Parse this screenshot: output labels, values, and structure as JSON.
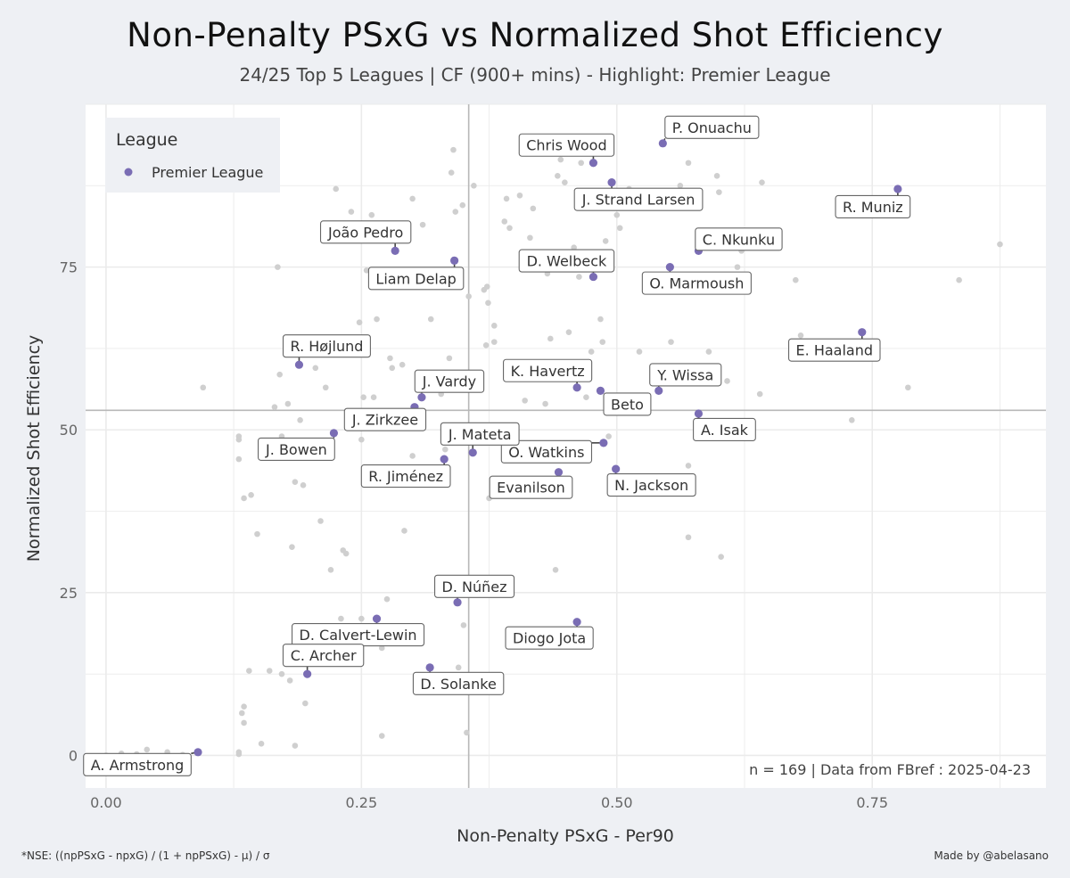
{
  "title": "Non-Penalty PSxG  vs  Normalized Shot Efficiency",
  "subtitle": "24/25 Top 5 Leagues | CF (900+ mins) - Highlight: Premier League",
  "caption": "n =  169  | Data from  FBref : 2025-04-23",
  "footnote_left": "*NSE: ((npPSxG - npxG) / (1 + npPSxG) - μ) / σ",
  "footnote_right": "Made by @abelasano",
  "legend": {
    "title": "League",
    "item": "Premier League"
  },
  "colors": {
    "highlight": "#7a6db4",
    "background_points": "#cfcfcf",
    "reference_lines": "#b8b8b8",
    "panel": "#ffffff",
    "page": "#eef0f4"
  },
  "chart_data": {
    "type": "scatter",
    "xlabel": "Non-Penalty PSxG  -  Per90",
    "ylabel": "Normalized Shot Efficiency",
    "xlim": [
      -0.02,
      0.92
    ],
    "ylim": [
      -5,
      100
    ],
    "x_ticks": [
      0.0,
      0.25,
      0.5,
      0.75
    ],
    "x_tick_labels": [
      "0.00",
      "0.25",
      "0.50",
      "0.75"
    ],
    "y_ticks": [
      0,
      25,
      50,
      75
    ],
    "y_tick_labels": [
      "0",
      "25",
      "50",
      "75"
    ],
    "x_reference": 0.355,
    "y_reference": 53,
    "grid": true,
    "legend_position": "top-left",
    "highlight_series": {
      "name": "Premier League",
      "points": [
        {
          "label": "P. Onuachu",
          "x": 0.545,
          "y": 94
        },
        {
          "label": "Chris Wood",
          "x": 0.477,
          "y": 91
        },
        {
          "label": "J. Strand Larsen",
          "x": 0.495,
          "y": 88
        },
        {
          "label": "R. Muniz",
          "x": 0.775,
          "y": 87
        },
        {
          "label": "João Pedro",
          "x": 0.283,
          "y": 77.5
        },
        {
          "label": "C. Nkunku",
          "x": 0.58,
          "y": 77.5
        },
        {
          "label": "Liam Delap",
          "x": 0.341,
          "y": 76
        },
        {
          "label": "O. Marmoush",
          "x": 0.552,
          "y": 75
        },
        {
          "label": "D. Welbeck",
          "x": 0.477,
          "y": 73.5
        },
        {
          "label": "E. Haaland",
          "x": 0.74,
          "y": 65
        },
        {
          "label": "R. Højlund",
          "x": 0.189,
          "y": 60
        },
        {
          "label": "K. Havertz",
          "x": 0.461,
          "y": 56.5
        },
        {
          "label": "Y. Wissa",
          "x": 0.541,
          "y": 56
        },
        {
          "label": "Beto",
          "x": 0.484,
          "y": 56
        },
        {
          "label": "J. Vardy",
          "x": 0.309,
          "y": 55
        },
        {
          "label": "J. Zirkzee",
          "x": 0.302,
          "y": 53.5
        },
        {
          "label": "A. Isak",
          "x": 0.58,
          "y": 52.5
        },
        {
          "label": "J. Bowen",
          "x": 0.223,
          "y": 49.5
        },
        {
          "label": "O. Watkins",
          "x": 0.487,
          "y": 48
        },
        {
          "label": "J. Mateta",
          "x": 0.359,
          "y": 46.5
        },
        {
          "label": "R. Jiménez",
          "x": 0.331,
          "y": 45.5
        },
        {
          "label": "N. Jackson",
          "x": 0.499,
          "y": 44
        },
        {
          "label": "Evanilson",
          "x": 0.443,
          "y": 43.5
        },
        {
          "label": "D. Núñez",
          "x": 0.344,
          "y": 23.5
        },
        {
          "label": "D. Calvert-Lewin",
          "x": 0.265,
          "y": 21
        },
        {
          "label": "Diogo Jota",
          "x": 0.461,
          "y": 20.5
        },
        {
          "label": "D. Solanke",
          "x": 0.317,
          "y": 13.5
        },
        {
          "label": "C. Archer",
          "x": 0.197,
          "y": 12.5
        },
        {
          "label": "A. Armstrong",
          "x": 0.09,
          "y": 0.5
        }
      ]
    },
    "other_points": [
      [
        0.0,
        0.0
      ],
      [
        0.015,
        0.3
      ],
      [
        0.03,
        0.2
      ],
      [
        0.04,
        0.9
      ],
      [
        0.06,
        0.5
      ],
      [
        0.075,
        0.1
      ],
      [
        0.095,
        56.5
      ],
      [
        0.13,
        49
      ],
      [
        0.13,
        48.5
      ],
      [
        0.13,
        45.5
      ],
      [
        0.13,
        0.5
      ],
      [
        0.13,
        0.2
      ],
      [
        0.133,
        6.5
      ],
      [
        0.135,
        7.5
      ],
      [
        0.135,
        5
      ],
      [
        0.135,
        39.5
      ],
      [
        0.14,
        13
      ],
      [
        0.142,
        40
      ],
      [
        0.148,
        34
      ],
      [
        0.152,
        1.8
      ],
      [
        0.16,
        13
      ],
      [
        0.165,
        53.5
      ],
      [
        0.168,
        75
      ],
      [
        0.17,
        58.5
      ],
      [
        0.172,
        49
      ],
      [
        0.172,
        12.5
      ],
      [
        0.178,
        54
      ],
      [
        0.18,
        11.5
      ],
      [
        0.182,
        32
      ],
      [
        0.185,
        42
      ],
      [
        0.185,
        1.5
      ],
      [
        0.19,
        51.5
      ],
      [
        0.193,
        41.5
      ],
      [
        0.195,
        8
      ],
      [
        0.205,
        59.5
      ],
      [
        0.21,
        36
      ],
      [
        0.215,
        56.5
      ],
      [
        0.22,
        28.5
      ],
      [
        0.225,
        87
      ],
      [
        0.23,
        21
      ],
      [
        0.232,
        31.5
      ],
      [
        0.235,
        31
      ],
      [
        0.24,
        83.5
      ],
      [
        0.248,
        66.5
      ],
      [
        0.25,
        48.5
      ],
      [
        0.25,
        21
      ],
      [
        0.252,
        55
      ],
      [
        0.255,
        74.5
      ],
      [
        0.26,
        83
      ],
      [
        0.262,
        55
      ],
      [
        0.265,
        67
      ],
      [
        0.27,
        3
      ],
      [
        0.27,
        16.5
      ],
      [
        0.275,
        24
      ],
      [
        0.278,
        61
      ],
      [
        0.28,
        59.5
      ],
      [
        0.29,
        60
      ],
      [
        0.292,
        34.5
      ],
      [
        0.3,
        85.5
      ],
      [
        0.3,
        46
      ],
      [
        0.31,
        81.5
      ],
      [
        0.318,
        67
      ],
      [
        0.328,
        55.5
      ],
      [
        0.332,
        47
      ],
      [
        0.336,
        61
      ],
      [
        0.338,
        89.5
      ],
      [
        0.34,
        93
      ],
      [
        0.342,
        83.5
      ],
      [
        0.345,
        13.5
      ],
      [
        0.349,
        84.5
      ],
      [
        0.35,
        20
      ],
      [
        0.353,
        3.5
      ],
      [
        0.355,
        70.5
      ],
      [
        0.36,
        87.5
      ],
      [
        0.37,
        71.5
      ],
      [
        0.372,
        63
      ],
      [
        0.373,
        72
      ],
      [
        0.374,
        69.5
      ],
      [
        0.375,
        39.5
      ],
      [
        0.38,
        66
      ],
      [
        0.38,
        63.5
      ],
      [
        0.39,
        82
      ],
      [
        0.392,
        85.5
      ],
      [
        0.395,
        81
      ],
      [
        0.405,
        86
      ],
      [
        0.41,
        54.5
      ],
      [
        0.415,
        79.5
      ],
      [
        0.418,
        84
      ],
      [
        0.43,
        54
      ],
      [
        0.432,
        74
      ],
      [
        0.435,
        64
      ],
      [
        0.44,
        28.5
      ],
      [
        0.442,
        89
      ],
      [
        0.445,
        91.5
      ],
      [
        0.449,
        88
      ],
      [
        0.453,
        65
      ],
      [
        0.458,
        78
      ],
      [
        0.463,
        73.5
      ],
      [
        0.465,
        91
      ],
      [
        0.47,
        55
      ],
      [
        0.475,
        62
      ],
      [
        0.484,
        67
      ],
      [
        0.486,
        63.5
      ],
      [
        0.489,
        79
      ],
      [
        0.492,
        49
      ],
      [
        0.5,
        83
      ],
      [
        0.503,
        81
      ],
      [
        0.512,
        87
      ],
      [
        0.522,
        62
      ],
      [
        0.553,
        63.5
      ],
      [
        0.562,
        87.5
      ],
      [
        0.57,
        91
      ],
      [
        0.57,
        44.5
      ],
      [
        0.57,
        33.5
      ],
      [
        0.58,
        51.5
      ],
      [
        0.59,
        62
      ],
      [
        0.598,
        89
      ],
      [
        0.6,
        86.5
      ],
      [
        0.602,
        30.5
      ],
      [
        0.608,
        57.5
      ],
      [
        0.618,
        75
      ],
      [
        0.622,
        77.5
      ],
      [
        0.64,
        55.5
      ],
      [
        0.642,
        88
      ],
      [
        0.675,
        73
      ],
      [
        0.68,
        64.5
      ],
      [
        0.73,
        51.5
      ],
      [
        0.785,
        56.5
      ],
      [
        0.835,
        73
      ],
      [
        0.875,
        78.5
      ]
    ]
  }
}
